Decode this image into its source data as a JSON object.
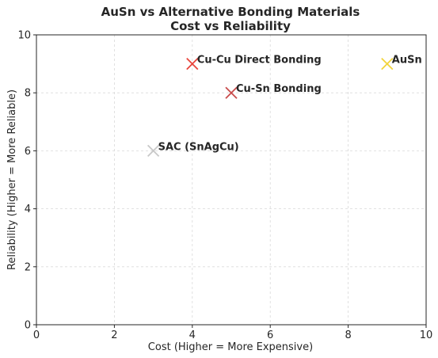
{
  "chart_data": {
    "type": "scatter",
    "title": "AuSn vs Alternative Bonding Materials",
    "subtitle": "Cost vs Reliability",
    "xlabel": "Cost (Higher = More Expensive)",
    "ylabel": "Reliability (Higher = More Reliable)",
    "xlim": [
      0,
      10
    ],
    "ylim": [
      0,
      10
    ],
    "xticks": [
      0,
      2,
      4,
      6,
      8,
      10
    ],
    "yticks": [
      0,
      2,
      4,
      6,
      8,
      10
    ],
    "grid": true,
    "marker": "x",
    "points": [
      {
        "label": "AuSn",
        "x": 9,
        "y": 9,
        "color": "#f2d43c"
      },
      {
        "label": "Cu-Sn Bonding",
        "x": 5,
        "y": 8,
        "color": "#c84a4a"
      },
      {
        "label": "SAC (SnAgCu)",
        "x": 3,
        "y": 6,
        "color": "#c8c8c8"
      },
      {
        "label": "Cu-Cu Direct Bonding",
        "x": 4,
        "y": 9,
        "color": "#e8453c"
      }
    ]
  }
}
